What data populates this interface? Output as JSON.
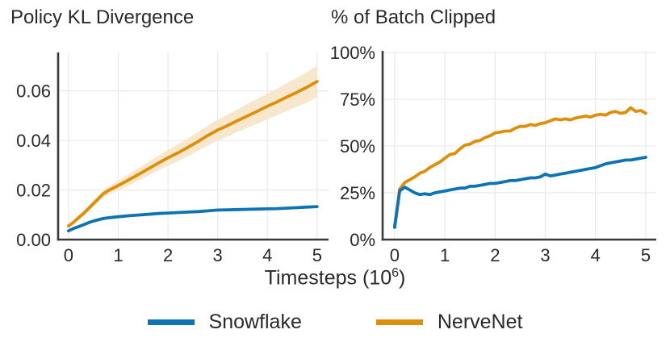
{
  "style": {
    "background": "#ffffff",
    "grid_color": "#e9e9e9",
    "spine_color": "#3a3a3a",
    "text_color": "#2a2a2a",
    "snowflake_color": "#0d73b2",
    "nervenet_color": "#de8f0a",
    "nervenet_band_color": "#f7e8cd"
  },
  "xlabel": {
    "prefix": "Timesteps (10",
    "exp": "6",
    "suffix": ")"
  },
  "legend": {
    "items": [
      {
        "label": "Snowflake",
        "color": "#0d73b2"
      },
      {
        "label": "NerveNet",
        "color": "#de8f0a"
      }
    ]
  },
  "chart_data": [
    {
      "type": "line",
      "title": "Policy KL Divergence",
      "xlabel": "Timesteps (10^6)",
      "xlim": [
        -0.21,
        5.23
      ],
      "ylim": [
        0,
        0.0755
      ],
      "xticks": [
        0,
        1,
        2,
        3,
        4,
        5
      ],
      "xtick_labels": [
        "0",
        "1",
        "2",
        "3",
        "4",
        "5"
      ],
      "yticks": [
        0,
        0.02,
        0.04,
        0.06
      ],
      "ytick_labels": [
        "0.00",
        "0.02",
        "0.04",
        "0.06"
      ],
      "grid": true,
      "series": [
        {
          "name": "NerveNet",
          "color": "#de8f0a",
          "x": [
            0,
            0.1,
            0.2,
            0.3,
            0.4,
            0.5,
            0.6,
            0.7,
            0.8,
            0.9,
            1,
            1.2,
            1.4,
            1.6,
            1.8,
            2,
            2.2,
            2.4,
            2.6,
            2.8,
            3,
            3.2,
            3.4,
            3.6,
            3.8,
            4,
            4.2,
            4.4,
            4.6,
            4.8,
            5
          ],
          "y": [
            0.0055,
            0.007,
            0.0088,
            0.0105,
            0.0125,
            0.0145,
            0.0165,
            0.0185,
            0.0198,
            0.0208,
            0.0218,
            0.024,
            0.0262,
            0.0285,
            0.0308,
            0.033,
            0.035,
            0.0372,
            0.0395,
            0.042,
            0.0442,
            0.046,
            0.048,
            0.0499,
            0.0518,
            0.0538,
            0.0556,
            0.0576,
            0.0595,
            0.0615,
            0.0638
          ],
          "band": {
            "color": "#f7e8cd",
            "hi": [
              0.0063,
              0.0079,
              0.0098,
              0.0116,
              0.0137,
              0.0158,
              0.0179,
              0.02,
              0.0214,
              0.0226,
              0.0238,
              0.0262,
              0.0287,
              0.0312,
              0.0337,
              0.0362,
              0.0384,
              0.0408,
              0.0433,
              0.046,
              0.0484,
              0.0504,
              0.0526,
              0.0547,
              0.0568,
              0.059,
              0.061,
              0.0632,
              0.0653,
              0.0676,
              0.0702
            ],
            "lo": [
              0.0047,
              0.0061,
              0.0078,
              0.0094,
              0.0113,
              0.0132,
              0.0151,
              0.017,
              0.0182,
              0.019,
              0.0198,
              0.0218,
              0.0237,
              0.0258,
              0.0279,
              0.0298,
              0.0316,
              0.0336,
              0.0357,
              0.038,
              0.04,
              0.0416,
              0.0434,
              0.0451,
              0.0468,
              0.0486,
              0.0502,
              0.052,
              0.0537,
              0.0554,
              0.0574
            ]
          }
        },
        {
          "name": "Snowflake",
          "color": "#0d73b2",
          "x": [
            0,
            0.1,
            0.2,
            0.3,
            0.4,
            0.5,
            0.6,
            0.7,
            0.8,
            0.9,
            1,
            1.2,
            1.4,
            1.6,
            1.8,
            2,
            2.2,
            2.4,
            2.6,
            2.8,
            3,
            3.2,
            3.4,
            3.6,
            3.8,
            4,
            4.2,
            4.4,
            4.6,
            4.8,
            5
          ],
          "y": [
            0.0035,
            0.0045,
            0.0052,
            0.006,
            0.0068,
            0.0075,
            0.008,
            0.0085,
            0.0088,
            0.009,
            0.0092,
            0.0096,
            0.0099,
            0.0102,
            0.0105,
            0.0107,
            0.0109,
            0.0111,
            0.0113,
            0.0116,
            0.0119,
            0.012,
            0.0121,
            0.0122,
            0.0123,
            0.0124,
            0.0125,
            0.0127,
            0.0129,
            0.0131,
            0.0133
          ]
        }
      ]
    },
    {
      "type": "line",
      "title": "% of Batch Clipped",
      "xlabel": "Timesteps (10^6)",
      "xlim": [
        -0.24,
        5.21
      ],
      "ylim": [
        0,
        100.9
      ],
      "xticks": [
        0,
        1,
        2,
        3,
        4,
        5
      ],
      "xtick_labels": [
        "0",
        "1",
        "2",
        "3",
        "4",
        "5"
      ],
      "yticks": [
        0,
        25,
        50,
        75,
        100
      ],
      "ytick_labels": [
        "0%",
        "25%",
        "50%",
        "75%",
        "100%"
      ],
      "grid": true,
      "series": [
        {
          "name": "NerveNet",
          "color": "#de8f0a",
          "x": [
            0,
            0.1,
            0.2,
            0.3,
            0.4,
            0.5,
            0.6,
            0.7,
            0.8,
            0.9,
            1,
            1.1,
            1.2,
            1.3,
            1.4,
            1.5,
            1.6,
            1.7,
            1.8,
            1.9,
            2,
            2.1,
            2.2,
            2.3,
            2.4,
            2.5,
            2.6,
            2.7,
            2.8,
            2.9,
            3,
            3.1,
            3.2,
            3.3,
            3.4,
            3.5,
            3.6,
            3.7,
            3.8,
            3.9,
            4,
            4.1,
            4.2,
            4.3,
            4.4,
            4.5,
            4.6,
            4.7,
            4.8,
            4.9,
            5
          ],
          "y": [
            7,
            27,
            30.5,
            32,
            33.5,
            35.5,
            36.5,
            38.5,
            40,
            41.5,
            43.5,
            45.5,
            46,
            48.5,
            50.5,
            51,
            52.5,
            53,
            54.5,
            55.5,
            57,
            57.5,
            58,
            58,
            59.5,
            60.5,
            60.5,
            61.5,
            61,
            62,
            62.5,
            63.5,
            64.5,
            64,
            64.5,
            64,
            65,
            65.5,
            66,
            65.5,
            66.5,
            67,
            66.5,
            68,
            68.5,
            67.5,
            68,
            70.5,
            68.5,
            69,
            67.5
          ]
        },
        {
          "name": "Snowflake",
          "color": "#0d73b2",
          "x": [
            0,
            0.1,
            0.2,
            0.3,
            0.4,
            0.5,
            0.6,
            0.7,
            0.8,
            0.9,
            1,
            1.1,
            1.2,
            1.3,
            1.4,
            1.5,
            1.6,
            1.7,
            1.8,
            1.9,
            2,
            2.1,
            2.2,
            2.3,
            2.4,
            2.5,
            2.6,
            2.7,
            2.8,
            2.9,
            3,
            3.1,
            3.2,
            3.3,
            3.4,
            3.5,
            3.6,
            3.7,
            3.8,
            3.9,
            4,
            4.1,
            4.2,
            4.3,
            4.4,
            4.5,
            4.6,
            4.7,
            4.8,
            4.9,
            5
          ],
          "y": [
            6.5,
            26,
            28,
            26.5,
            25,
            24,
            24.5,
            24,
            25,
            25.5,
            26,
            26.5,
            27,
            27.5,
            27.5,
            28.5,
            28.5,
            29,
            29.5,
            30,
            30,
            30.5,
            31,
            31.5,
            31.5,
            32,
            32.5,
            33,
            33,
            33.5,
            35,
            34,
            34.5,
            35,
            35.5,
            36,
            36.5,
            37,
            37.5,
            38,
            38.5,
            39.5,
            40.5,
            41,
            41.5,
            42,
            42.5,
            42.5,
            43,
            43.5,
            44
          ]
        }
      ]
    }
  ]
}
